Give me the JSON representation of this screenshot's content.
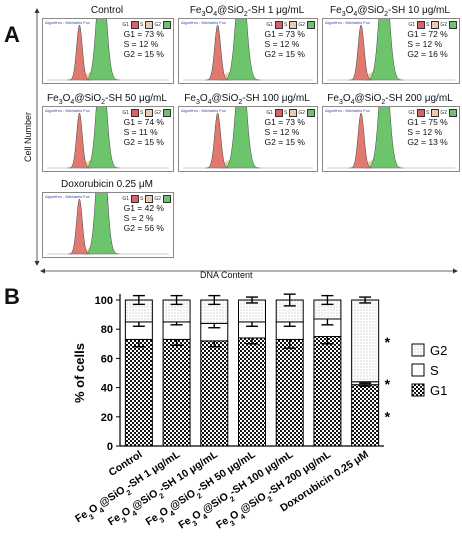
{
  "panel_a": {
    "letter": "A",
    "y_axis_label": "Cell Number",
    "x_axis_label": "DNA Content",
    "algorithm_label": "Algorithm - Michaelis Fox",
    "legend_keys": [
      "G1",
      "S",
      "G2"
    ],
    "colors": {
      "g1": "#e07a70",
      "s": "#e6d59a",
      "g2": "#6cc56c",
      "outline": "#444444",
      "sw_g1": "#e06060",
      "sw_s": "#f0c8b0",
      "sw_g2": "#70c070"
    }
  },
  "panel_b": {
    "letter": "B",
    "y_axis_label": "% of cells",
    "legend": [
      {
        "key": "g2",
        "label": "G2"
      },
      {
        "key": "s",
        "label": "S"
      },
      {
        "key": "g1",
        "label": "G1"
      }
    ],
    "significance_marks": [
      "*",
      "*",
      "*"
    ]
  },
  "chart_data": [
    {
      "type": "histogram-panels",
      "panels": [
        {
          "title": "Control",
          "stats": [
            "G1 = 73 %",
            "S = 12 %",
            "G2 = 15 %"
          ]
        },
        {
          "title": "Fe3O4@SiO2-SH 1 μg/mL",
          "title_parts": [
            "Fe",
            "3",
            "O",
            "4",
            "@SiO",
            "2",
            "-SH 1 μg/mL"
          ],
          "stats": [
            "G1 = 73 %",
            "S = 12 %",
            "G2 = 15 %"
          ]
        },
        {
          "title": "Fe3O4@SiO2-SH 10 μg/mL",
          "title_parts": [
            "Fe",
            "3",
            "O",
            "4",
            "@SiO",
            "2",
            "-SH 10 μg/mL"
          ],
          "stats": [
            "G1 = 72 %",
            "S = 12 %",
            "G2 = 16 %"
          ]
        },
        {
          "title": "Fe3O4@SiO2-SH 50 μg/mL",
          "title_parts": [
            "Fe",
            "3",
            "O",
            "4",
            "@SiO",
            "2",
            "-SH 50 μg/mL"
          ],
          "stats": [
            "G1 = 74 %",
            "S = 11 %",
            "G2 = 15 %"
          ]
        },
        {
          "title": "Fe3O4@SiO2-SH 100 μg/mL",
          "title_parts": [
            "Fe",
            "3",
            "O",
            "4",
            "@SiO",
            "2",
            "-SH 100 μg/mL"
          ],
          "stats": [
            "G1 = 73 %",
            "S = 12 %",
            "G2 = 15 %"
          ]
        },
        {
          "title": "Fe3O4@SiO2-SH 200 μg/mL",
          "title_parts": [
            "Fe",
            "3",
            "O",
            "4",
            "@SiO",
            "2",
            "-SH 200 μg/mL"
          ],
          "stats": [
            "G1 = 75 %",
            "S = 12 %",
            "G2 = 13 %"
          ]
        },
        {
          "title": "Doxorubicin 0.25 μM",
          "stats": [
            "G1 = 42 %",
            "S = 2 %",
            "G2 = 56 %"
          ]
        }
      ]
    },
    {
      "type": "bar",
      "stacked": true,
      "ylabel": "% of cells",
      "ylim": [
        0,
        100
      ],
      "yticks": [
        0,
        20,
        40,
        60,
        80,
        100
      ],
      "categories": [
        "Control",
        "Fe3O4@SiO2-SH 1 μg/mL",
        "Fe3O4@SiO2-SH 10 μg/mL",
        "Fe3O4@SiO2-SH 50 μg/mL",
        "Fe3O4@SiO2-SH 100 μg/mL",
        "Fe3O4@SiO2-SH 200 μg/mL",
        "Doxorubicin 0.25 μM"
      ],
      "category_parts": [
        [
          "Control"
        ],
        [
          "Fe",
          "3",
          "O",
          "4",
          "@SiO",
          "2",
          "-SH 1 μg/mL"
        ],
        [
          "Fe",
          "3",
          "O",
          "4",
          "@SiO",
          "2",
          "-SH 10 μg/mL"
        ],
        [
          "Fe",
          "3",
          "O",
          "4",
          "@SiO",
          "2",
          "-SH 50 μg/mL"
        ],
        [
          "Fe",
          "3",
          "O",
          "4",
          "@SiO",
          "2",
          "-SH 100 μg/mL"
        ],
        [
          "Fe",
          "3",
          "O",
          "4",
          "@SiO",
          "2",
          "-SH 200 μg/mL"
        ],
        [
          "Doxorubicin 0.25 μM"
        ]
      ],
      "series": [
        {
          "name": "G1",
          "values": [
            73,
            73,
            72,
            74,
            73,
            75,
            42
          ],
          "errors": [
            5,
            4,
            4,
            4,
            6,
            5,
            1
          ]
        },
        {
          "name": "S",
          "values": [
            12,
            12,
            12,
            11,
            12,
            12,
            2
          ],
          "errors": [
            3,
            2,
            3,
            3,
            3,
            4,
            1
          ]
        },
        {
          "name": "G2",
          "values": [
            15,
            15,
            16,
            15,
            15,
            13,
            56
          ],
          "errors": [
            3,
            3,
            3,
            2,
            4,
            3,
            2
          ]
        }
      ],
      "significance": [
        "*",
        "*",
        "*"
      ]
    }
  ]
}
